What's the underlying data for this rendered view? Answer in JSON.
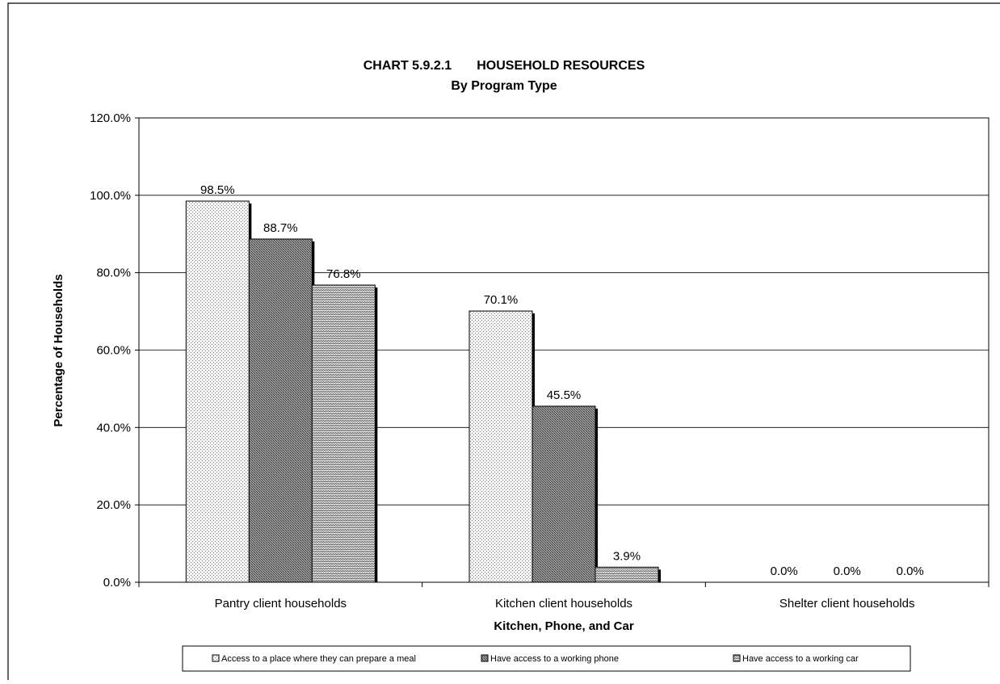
{
  "chart_data": {
    "type": "bar",
    "title": "CHART 5.9.2.1       HOUSEHOLD RESOURCES",
    "subtitle": "By Program Type",
    "xlabel": "Kitchen, Phone, and Car",
    "ylabel": "Percentage of Households",
    "ylim": [
      0,
      120
    ],
    "y_ticks": [
      "0.0%",
      "20.0%",
      "40.0%",
      "60.0%",
      "80.0%",
      "100.0%",
      "120.0%"
    ],
    "y_tick_values": [
      0,
      20,
      40,
      60,
      80,
      100,
      120
    ],
    "grid": true,
    "legend_position": "bottom",
    "categories": [
      "Pantry client households",
      "Kitchen client households",
      "Shelter client households"
    ],
    "series": [
      {
        "name": "Access to a place where they can prepare a meal",
        "values": [
          98.5,
          70.1,
          0.0
        ],
        "labels": [
          "98.5%",
          "70.1%",
          "0.0%"
        ],
        "color": "#f2f2f2",
        "pattern": "dots"
      },
      {
        "name": "Have access to a working phone",
        "values": [
          88.7,
          45.5,
          0.0
        ],
        "labels": [
          "88.7%",
          "45.5%",
          "0.0%"
        ],
        "color": "#8a8a8a",
        "pattern": "dense"
      },
      {
        "name": "Have access to a working car",
        "values": [
          76.8,
          3.9,
          0.0
        ],
        "labels": [
          "76.8%",
          "3.9%",
          "0.0%"
        ],
        "color": "#c8c8c8",
        "pattern": "zigzag"
      }
    ]
  }
}
